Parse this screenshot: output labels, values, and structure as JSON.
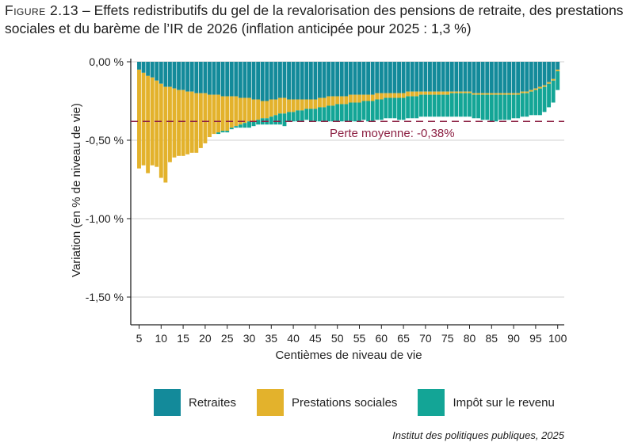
{
  "figure": {
    "label": "Figure 2.13",
    "title": " – Effets redistributifs du gel de la revalorisation des pensions de retraite, des prestations sociales et du barème de l’IR de 2026 (inflation anticipée pour 2025 : 1,3 %)"
  },
  "source": "Institut des politiques publiques, 2025",
  "colors": {
    "retraites": "#138a9a",
    "prestations": "#e3b22c",
    "impot": "#13a596",
    "mean_line": "#8c1f42",
    "grid": "#d0d0d0"
  },
  "chart_data": {
    "type": "bar",
    "stacked": true,
    "xlabel": "Centièmes de niveau de vie",
    "ylabel": "Variation (en % de niveau de vie)",
    "ylim": [
      -1.65,
      0.0
    ],
    "yticks": [
      0.0,
      -0.5,
      -1.0,
      -1.5
    ],
    "ytick_labels": [
      "0,00 %",
      "-0,50 %",
      "-1,00 %",
      "-1,50 %"
    ],
    "xticks": [
      5,
      10,
      15,
      20,
      25,
      30,
      35,
      40,
      45,
      50,
      55,
      60,
      65,
      70,
      75,
      80,
      85,
      90,
      95,
      100
    ],
    "x": [
      5,
      6,
      7,
      8,
      9,
      10,
      11,
      12,
      13,
      14,
      15,
      16,
      17,
      18,
      19,
      20,
      21,
      22,
      23,
      24,
      25,
      26,
      27,
      28,
      29,
      30,
      31,
      32,
      33,
      34,
      35,
      36,
      37,
      38,
      39,
      40,
      41,
      42,
      43,
      44,
      45,
      46,
      47,
      48,
      49,
      50,
      51,
      52,
      53,
      54,
      55,
      56,
      57,
      58,
      59,
      60,
      61,
      62,
      63,
      64,
      65,
      66,
      67,
      68,
      69,
      70,
      71,
      72,
      73,
      74,
      75,
      76,
      77,
      78,
      79,
      80,
      81,
      82,
      83,
      84,
      85,
      86,
      87,
      88,
      89,
      90,
      91,
      92,
      93,
      94,
      95,
      96,
      97,
      98,
      99,
      100
    ],
    "series": [
      {
        "name": "Retraites",
        "key": "retraites",
        "values": [
          -0.05,
          -0.07,
          -0.09,
          -0.1,
          -0.12,
          -0.14,
          -0.16,
          -0.16,
          -0.17,
          -0.18,
          -0.18,
          -0.19,
          -0.19,
          -0.2,
          -0.2,
          -0.2,
          -0.21,
          -0.21,
          -0.21,
          -0.22,
          -0.22,
          -0.22,
          -0.22,
          -0.23,
          -0.23,
          -0.23,
          -0.24,
          -0.24,
          -0.25,
          -0.25,
          -0.24,
          -0.24,
          -0.23,
          -0.23,
          -0.24,
          -0.24,
          -0.24,
          -0.24,
          -0.24,
          -0.24,
          -0.24,
          -0.23,
          -0.23,
          -0.22,
          -0.22,
          -0.22,
          -0.22,
          -0.22,
          -0.21,
          -0.21,
          -0.21,
          -0.21,
          -0.21,
          -0.21,
          -0.2,
          -0.2,
          -0.2,
          -0.2,
          -0.2,
          -0.2,
          -0.2,
          -0.19,
          -0.19,
          -0.19,
          -0.19,
          -0.19,
          -0.19,
          -0.19,
          -0.19,
          -0.19,
          -0.19,
          -0.19,
          -0.19,
          -0.19,
          -0.19,
          -0.19,
          -0.2,
          -0.2,
          -0.2,
          -0.2,
          -0.2,
          -0.2,
          -0.2,
          -0.2,
          -0.2,
          -0.2,
          -0.2,
          -0.19,
          -0.19,
          -0.18,
          -0.17,
          -0.16,
          -0.15,
          -0.13,
          -0.11,
          -0.05
        ]
      },
      {
        "name": "Prestations sociales",
        "key": "prestations",
        "values": [
          -0.63,
          -0.59,
          -0.62,
          -0.56,
          -0.55,
          -0.6,
          -0.61,
          -0.48,
          -0.44,
          -0.42,
          -0.42,
          -0.4,
          -0.39,
          -0.38,
          -0.35,
          -0.32,
          -0.27,
          -0.25,
          -0.24,
          -0.22,
          -0.22,
          -0.2,
          -0.19,
          -0.17,
          -0.16,
          -0.15,
          -0.14,
          -0.13,
          -0.11,
          -0.11,
          -0.11,
          -0.1,
          -0.1,
          -0.1,
          -0.08,
          -0.08,
          -0.07,
          -0.07,
          -0.06,
          -0.06,
          -0.06,
          -0.06,
          -0.06,
          -0.06,
          -0.06,
          -0.05,
          -0.05,
          -0.05,
          -0.05,
          -0.05,
          -0.05,
          -0.04,
          -0.04,
          -0.04,
          -0.04,
          -0.04,
          -0.03,
          -0.03,
          -0.03,
          -0.03,
          -0.03,
          -0.03,
          -0.03,
          -0.03,
          -0.02,
          -0.02,
          -0.02,
          -0.02,
          -0.02,
          -0.02,
          -0.02,
          -0.01,
          -0.01,
          -0.01,
          -0.01,
          -0.01,
          -0.01,
          -0.01,
          -0.01,
          -0.01,
          -0.01,
          -0.01,
          -0.01,
          -0.01,
          -0.01,
          -0.01,
          -0.01,
          -0.01,
          -0.01,
          -0.01,
          -0.01,
          -0.01,
          -0.01,
          -0.01,
          -0.01,
          -0.01
        ]
      },
      {
        "name": "Impôt sur le revenu",
        "key": "impot",
        "values": [
          0.0,
          0.0,
          0.0,
          0.0,
          0.0,
          0.0,
          0.0,
          0.0,
          0.0,
          0.0,
          0.0,
          0.0,
          0.0,
          0.0,
          0.0,
          0.0,
          0.0,
          0.0,
          -0.01,
          -0.01,
          -0.01,
          -0.01,
          -0.01,
          -0.02,
          -0.03,
          -0.04,
          -0.03,
          -0.03,
          -0.04,
          -0.04,
          -0.05,
          -0.06,
          -0.07,
          -0.08,
          -0.06,
          -0.06,
          -0.07,
          -0.07,
          -0.07,
          -0.08,
          -0.08,
          -0.09,
          -0.09,
          -0.1,
          -0.1,
          -0.11,
          -0.11,
          -0.11,
          -0.12,
          -0.12,
          -0.12,
          -0.12,
          -0.13,
          -0.13,
          -0.13,
          -0.13,
          -0.13,
          -0.13,
          -0.13,
          -0.14,
          -0.14,
          -0.14,
          -0.14,
          -0.14,
          -0.14,
          -0.14,
          -0.14,
          -0.14,
          -0.14,
          -0.14,
          -0.14,
          -0.15,
          -0.15,
          -0.15,
          -0.15,
          -0.15,
          -0.15,
          -0.15,
          -0.16,
          -0.16,
          -0.17,
          -0.17,
          -0.16,
          -0.16,
          -0.16,
          -0.15,
          -0.15,
          -0.15,
          -0.15,
          -0.15,
          -0.16,
          -0.17,
          -0.16,
          -0.15,
          -0.14,
          -0.12
        ]
      }
    ],
    "reference_line": {
      "value": -0.38,
      "label": "Perte moyenne: -0,38%"
    },
    "grid": true,
    "legend_position": "bottom"
  }
}
